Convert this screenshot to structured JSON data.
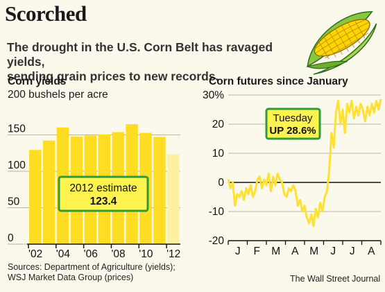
{
  "header": {
    "title": "Scorched",
    "subtitle_lines": [
      "The drought in the U.S. Corn Belt has ravaged yields,",
      "sending grain prices to new records."
    ]
  },
  "footer": {
    "source_lines": [
      "Sources: Department of Agriculture (yields);",
      "WSJ Market Data Group (prices)"
    ],
    "credit": "The Wall Street Journal"
  },
  "icons": {
    "illustration": "corn-cob-icon"
  },
  "colors": {
    "bar": "#ffdd22",
    "bar_estimate": "#fdf0a0",
    "line": "#ffe033",
    "callout_border": "#2f9a3a",
    "callout_fill": "#fff44f",
    "corn_leaf": "#8bc63f",
    "corn_kernel": "#ffd500"
  },
  "chart_data": [
    {
      "type": "bar",
      "title": "Corn yields",
      "ylabel": "200 bushels per acre",
      "ylim": [
        0,
        200
      ],
      "yticks": [
        "0",
        "50",
        "100",
        "150"
      ],
      "years": [
        2002,
        2003,
        2004,
        2005,
        2006,
        2007,
        2008,
        2009,
        2010,
        2011,
        2012
      ],
      "xticklabels": [
        "'02",
        "'04",
        "'06",
        "'08",
        "'10",
        "'12"
      ],
      "values": [
        129.3,
        142.2,
        160.3,
        147.9,
        149.1,
        150.7,
        153.9,
        164.7,
        152.8,
        147.2,
        123.4
      ],
      "estimate_index": 10,
      "annotation": {
        "line1": "2012 estimate",
        "line2": "123.4"
      }
    },
    {
      "type": "line",
      "title": "Corn futures since January",
      "ylim": [
        -20,
        30
      ],
      "yticks": [
        "30%",
        "20",
        "10",
        "0",
        "-10",
        "-20"
      ],
      "months": [
        "J",
        "F",
        "M",
        "A",
        "M",
        "J",
        "J",
        "A"
      ],
      "x_week": [
        0,
        0.5,
        1,
        1.5,
        2,
        2.5,
        3,
        3.5,
        4,
        4.5,
        5,
        5.5,
        6,
        6.5,
        7,
        7.5,
        8,
        8.5,
        9,
        9.5,
        10,
        10.5,
        11,
        11.5,
        12,
        12.5,
        13,
        13.5,
        14,
        14.5,
        15,
        15.5,
        16,
        16.5,
        17,
        17.5,
        18,
        18.5,
        19,
        19.5,
        20,
        20.5,
        21,
        21.5,
        22,
        22.5,
        23,
        23.5,
        24,
        24.5,
        25,
        25.5,
        26,
        26.5,
        27,
        27.5,
        28,
        28.5,
        29,
        29.5,
        30,
        30.5,
        31,
        31.5,
        32,
        32.5,
        33,
        33.5,
        34
      ],
      "values": [
        1,
        -2,
        0,
        -8,
        -4,
        -5,
        -3,
        -6,
        -2,
        -4,
        -1,
        -5,
        -3,
        1,
        2,
        -2,
        1,
        -1,
        3,
        -3,
        2,
        -1,
        3,
        1,
        0,
        -4,
        -5,
        -2,
        -3,
        -1,
        -3,
        -8,
        -6,
        -10,
        -8,
        -12,
        -14,
        -11,
        -15,
        -9,
        -12,
        -7,
        -10,
        -5,
        -3,
        4,
        17,
        12,
        24,
        28,
        20,
        25,
        17,
        27,
        24,
        28,
        22,
        26,
        23,
        27,
        25,
        21,
        26,
        23,
        27,
        24,
        28,
        25,
        28.6
      ],
      "annotation": {
        "line1": "Tuesday",
        "line2": "UP 28.6%"
      }
    }
  ]
}
